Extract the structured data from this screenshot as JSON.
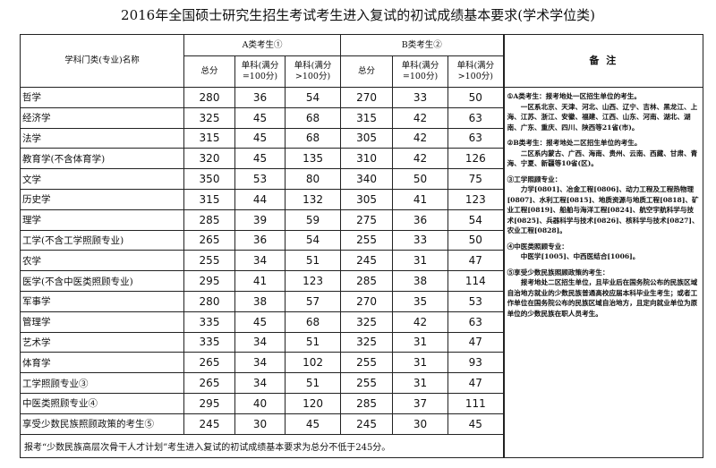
{
  "title": "2016年全国硕士研究生招生考试考生进入复试的初试成绩基本要求(学术学位类)",
  "table": {
    "header": {
      "name": "学科门类(专业)名称",
      "group_a": "A类考生①",
      "group_b": "B类考生②",
      "subs": [
        "总分",
        "单科(满分=100分)",
        "单科(满分>100分)",
        "总分",
        "单科(满分=100分)",
        "单科(满分>100分)"
      ],
      "remark": "备 注"
    },
    "rows": [
      [
        "哲学",
        "280",
        "36",
        "54",
        "270",
        "33",
        "50"
      ],
      [
        "经济学",
        "325",
        "45",
        "68",
        "315",
        "42",
        "63"
      ],
      [
        "法学",
        "315",
        "45",
        "68",
        "305",
        "42",
        "63"
      ],
      [
        "教育学(不含体育学)",
        "320",
        "45",
        "135",
        "310",
        "42",
        "126"
      ],
      [
        "文学",
        "350",
        "53",
        "80",
        "340",
        "50",
        "75"
      ],
      [
        "历史学",
        "315",
        "44",
        "132",
        "305",
        "41",
        "123"
      ],
      [
        "理学",
        "285",
        "39",
        "59",
        "275",
        "36",
        "54"
      ],
      [
        "工学(不含工学照顾专业)",
        "265",
        "36",
        "54",
        "255",
        "33",
        "50"
      ],
      [
        "农学",
        "255",
        "34",
        "51",
        "245",
        "31",
        "47"
      ],
      [
        "医学(不含中医类照顾专业)",
        "295",
        "41",
        "123",
        "285",
        "38",
        "114"
      ],
      [
        "军事学",
        "280",
        "38",
        "57",
        "270",
        "35",
        "53"
      ],
      [
        "管理学",
        "335",
        "45",
        "68",
        "325",
        "42",
        "63"
      ],
      [
        "艺术学",
        "335",
        "34",
        "51",
        "325",
        "31",
        "47"
      ],
      [
        "体育学",
        "265",
        "34",
        "102",
        "255",
        "31",
        "93"
      ],
      [
        "工学照顾专业③",
        "265",
        "34",
        "51",
        "255",
        "31",
        "47"
      ],
      [
        "中医类照顾专业④",
        "295",
        "40",
        "120",
        "285",
        "37",
        "111"
      ],
      [
        "享受少数民族照顾政策的考生⑤",
        "245",
        "30",
        "45",
        "245",
        "30",
        "45"
      ]
    ],
    "footer": "报考“少数民族高层次骨干人才计划”考生进入复试的初试成绩基本要求为总分不低于245分。",
    "notes": [
      {
        "title": "①A类考生：报考地处一区招生单位的考生。",
        "body": "一区系北京、天津、河北、山西、辽宁、吉林、黑龙江、上海、江苏、浙江、安徽、福建、江西、山东、河南、湖北、湖南、广东、重庆、四川、陕西等21省(市)。"
      },
      {
        "title": "②B类考生：报考地处二区招生单位的考生。",
        "body": "二区系内蒙古、广西、海南、贵州、云南、西藏、甘肃、青海、宁夏、新疆等10省(区)。"
      },
      {
        "title": "③工学照顾专业：",
        "body": "力学[0801]、冶金工程[0806]、动力工程及工程热物理[0807]、水利工程[0815]、地质资源与地质工程[0818]、矿业工程[0819]、船舶与海洋工程[0824]、航空宇航科学与技术[0825]、兵器科学与技术[0826]、核科学与技术[0827]、农业工程[0828]。"
      },
      {
        "title": "④中医类照顾专业：",
        "body": "中医学[1005]、中西医结合[1006]。"
      },
      {
        "title": "⑤享受少数民族照顾政策的考生：",
        "body": "报考地处二区招生单位，且毕业后在国务院公布的民族区域自治地方就业的少数民族普通高校应届本科毕业生考生；或者工作单位在国务院公布的民族区域自治地方，且定向就业单位为原单位的少数民族在职人员考生。"
      }
    ]
  }
}
